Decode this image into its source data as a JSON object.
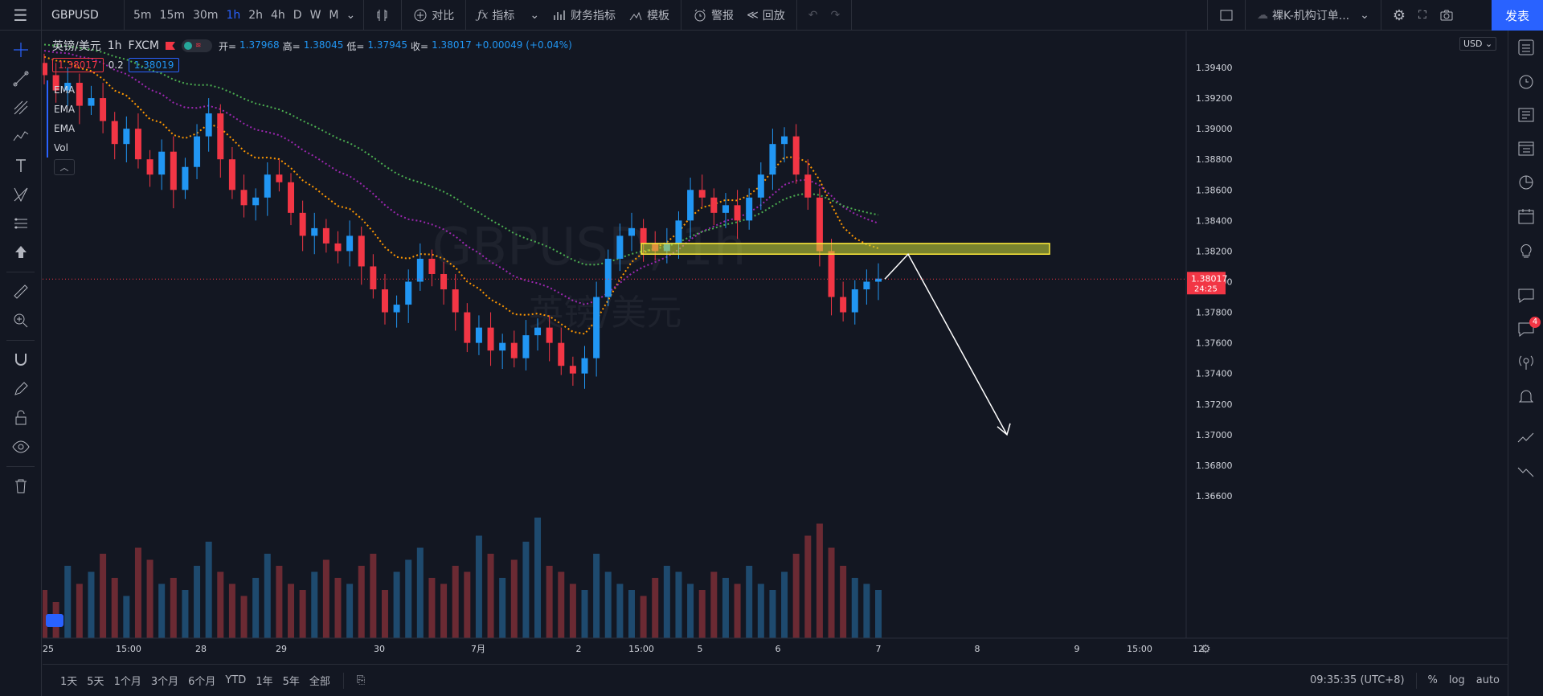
{
  "toolbar": {
    "symbol": "GBPUSD",
    "intervals": [
      "5m",
      "15m",
      "30m",
      "1h",
      "2h",
      "4h",
      "D",
      "W",
      "M"
    ],
    "active_interval": "1h",
    "compare": "对比",
    "indicators": "指标",
    "financials": "财务指标",
    "templates": "模板",
    "alert": "警报",
    "replay": "回放",
    "layout_name": "裸K-机构订单...",
    "publish": "发表"
  },
  "legend": {
    "title": "英镑/美元",
    "interval": "1h",
    "exchange": "FXCM",
    "open_label": "开=",
    "open": "1.37968",
    "high_label": "高=",
    "high": "1.38045",
    "low_label": "低=",
    "low": "1.37945",
    "close_label": "收=",
    "close": "1.38017",
    "change": "+0.00049 (+0.04%)",
    "sell_price": "1.38017",
    "spread": "0.2",
    "buy_price": "1.38019",
    "indicators": [
      "EMA",
      "EMA",
      "EMA",
      "Vol"
    ]
  },
  "watermark": {
    "symbol": "GBPUSD, 1h",
    "name": "英镑/美元"
  },
  "currency": "USD",
  "last_price_label": {
    "price": "1.38017",
    "countdown": "24:25"
  },
  "chart_data": {
    "type": "candlestick",
    "price_ticks": [
      "1.39400",
      "1.39200",
      "1.39000",
      "1.38800",
      "1.38600",
      "1.38400",
      "1.38200",
      "1.38000",
      "1.37800",
      "1.37600",
      "1.37400",
      "1.37200",
      "1.37000",
      "1.36800",
      "1.36600"
    ],
    "time_ticks": [
      "25",
      "15:00",
      "28",
      "29",
      "30",
      "7月",
      "2",
      "15:00",
      "5",
      "6",
      "7",
      "8",
      "9",
      "15:00",
      "12"
    ],
    "ylim": [
      1.3655,
      1.395
    ],
    "last_price": 1.38017,
    "zone": [
      1.3818,
      1.3825
    ],
    "arrow_target": 1.37,
    "closes": [
      1.3935,
      1.3925,
      1.393,
      1.3915,
      1.392,
      1.3905,
      1.389,
      1.39,
      1.388,
      1.387,
      1.3885,
      1.386,
      1.3875,
      1.3895,
      1.391,
      1.388,
      1.386,
      1.385,
      1.3855,
      1.387,
      1.3865,
      1.3845,
      1.383,
      1.3835,
      1.3825,
      1.382,
      1.383,
      1.381,
      1.3795,
      1.378,
      1.3785,
      1.38,
      1.3815,
      1.3805,
      1.3795,
      1.378,
      1.376,
      1.377,
      1.3755,
      1.376,
      1.375,
      1.3765,
      1.377,
      1.376,
      1.3745,
      1.374,
      1.375,
      1.379,
      1.3815,
      1.383,
      1.3835,
      1.3825,
      1.382,
      1.3825,
      1.384,
      1.386,
      1.3855,
      1.3845,
      1.385,
      1.384,
      1.3855,
      1.387,
      1.389,
      1.3895,
      1.387,
      1.3855,
      1.382,
      1.379,
      1.378,
      1.3795,
      1.38,
      1.3802
    ],
    "volumes": [
      40,
      30,
      60,
      45,
      55,
      70,
      50,
      35,
      75,
      65,
      45,
      50,
      40,
      60,
      80,
      55,
      45,
      35,
      50,
      70,
      60,
      45,
      40,
      55,
      65,
      50,
      45,
      60,
      70,
      40,
      55,
      65,
      75,
      50,
      45,
      60,
      55,
      85,
      70,
      50,
      65,
      80,
      100,
      60,
      55,
      45,
      40,
      70,
      55,
      45,
      40,
      35,
      50,
      60,
      55,
      45,
      40,
      55,
      50,
      45,
      60,
      45,
      40,
      55,
      70,
      85,
      95,
      75,
      60,
      50,
      45,
      40
    ]
  }
}
